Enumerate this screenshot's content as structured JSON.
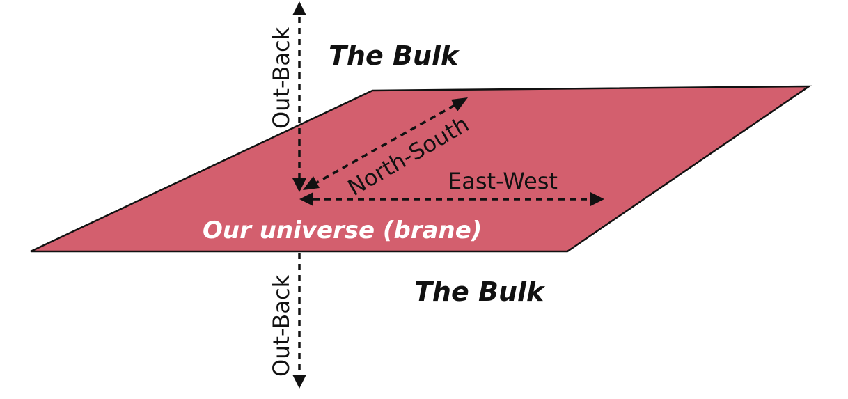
{
  "labels": {
    "bulk_top": "The Bulk",
    "bulk_bottom": "The Bulk",
    "brane": "Our universe (brane)",
    "north_south": "North-South",
    "east_west": "East-West",
    "out_back_top": "Out-Back",
    "out_back_bottom": "Out-Back"
  },
  "colors": {
    "brane_fill": "#d35f6e",
    "brane_stroke": "#111111",
    "text_dark": "#111111",
    "text_light": "#ffffff"
  }
}
